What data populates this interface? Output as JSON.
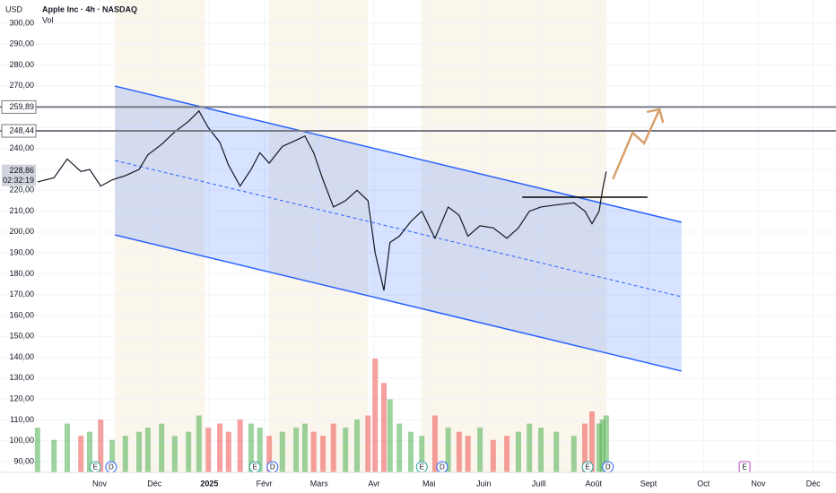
{
  "chart_data": {
    "type": "line",
    "currency": "USD",
    "title": "Apple Inc · 4h · NASDAQ",
    "xlim": [
      -1.814,
      13.415
    ],
    "ylim": [
      84.85,
      311.16
    ],
    "y2lim": [
      0,
      581
    ],
    "grid": true,
    "xticks": [
      {
        "value": 0,
        "label": "Nov"
      },
      {
        "value": 1,
        "label": "Déc"
      },
      {
        "value": 2,
        "label": "2025"
      },
      {
        "value": 3,
        "label": "Févr"
      },
      {
        "value": 4,
        "label": "Mars"
      },
      {
        "value": 5,
        "label": "Avr"
      },
      {
        "value": 6,
        "label": "Mai"
      },
      {
        "value": 7,
        "label": "Juin"
      },
      {
        "value": 8,
        "label": "Juill"
      },
      {
        "value": 9,
        "label": "Août"
      },
      {
        "value": 10,
        "label": "Sept"
      },
      {
        "value": 11,
        "label": "Oct"
      },
      {
        "value": 12,
        "label": "Nov"
      },
      {
        "value": 13,
        "label": "Déc"
      }
    ],
    "yticks": [
      {
        "value": 90,
        "label": "90,00"
      },
      {
        "value": 100,
        "label": "100,00"
      },
      {
        "value": 110,
        "label": "110,00"
      },
      {
        "value": 120,
        "label": "120,00"
      },
      {
        "value": 130,
        "label": "130,00"
      },
      {
        "value": 140,
        "label": "140,00"
      },
      {
        "value": 150,
        "label": "150,00"
      },
      {
        "value": 160,
        "label": "160,00"
      },
      {
        "value": 170,
        "label": "170,00"
      },
      {
        "value": 180,
        "label": "180,00"
      },
      {
        "value": 190,
        "label": "190,00"
      },
      {
        "value": 200,
        "label": "200,00"
      },
      {
        "value": 210,
        "label": "210,00"
      },
      {
        "value": 220,
        "label": "220,00"
      },
      {
        "value": 230,
        "label": "230,00"
      },
      {
        "value": 240,
        "label": "240,00"
      },
      {
        "value": 250,
        "label": "250,00"
      },
      {
        "value": 260,
        "label": "260,00"
      },
      {
        "value": 270,
        "label": "270,00"
      },
      {
        "value": 280,
        "label": "280,00"
      },
      {
        "value": 290,
        "label": "290,00"
      },
      {
        "value": 300,
        "label": "300,00"
      }
    ],
    "series": [
      {
        "color": "#131722",
        "x": [
          -1.13,
          -0.83,
          -0.59,
          -0.34,
          -0.18,
          0.02,
          0.23,
          0.47,
          0.72,
          0.88,
          1.13,
          1.37,
          1.62,
          1.81,
          1.98,
          2.19,
          2.35,
          2.56,
          2.76,
          2.92,
          3.09,
          3.33,
          3.58,
          3.74,
          3.9,
          4.07,
          4.26,
          4.48,
          4.69,
          4.89,
          5.02,
          5.18,
          5.29,
          5.46,
          5.67,
          5.87,
          6.11,
          6.35,
          6.55,
          6.71,
          6.93,
          7.17,
          7.42,
          7.63,
          7.83,
          8.04,
          8.32,
          8.64,
          8.84,
          8.97,
          9.1,
          9.16,
          9.23
        ],
        "values": [
          224,
          226,
          235,
          229,
          230,
          222,
          225,
          227,
          230,
          237,
          242,
          248,
          253,
          258,
          250,
          243,
          232,
          222,
          230,
          238,
          233,
          241,
          244,
          246,
          238,
          225,
          212,
          215,
          220,
          215,
          190,
          172,
          195,
          198,
          205,
          210,
          197,
          212,
          208,
          198,
          203,
          202,
          197,
          202,
          210,
          212,
          213,
          214,
          210,
          204,
          210,
          220,
          229
        ]
      },
      {
        "name": "Vol",
        "axis": "y2",
        "color": "#4caf50",
        "down_color": "#ef5350",
        "x": [
          -1.13,
          -0.83,
          -0.59,
          -0.34,
          -0.18,
          0.02,
          0.23,
          0.47,
          0.72,
          0.88,
          1.13,
          1.37,
          1.62,
          1.81,
          1.98,
          2.19,
          2.35,
          2.56,
          2.76,
          2.92,
          3.09,
          3.33,
          3.58,
          3.74,
          3.9,
          4.07,
          4.26,
          4.48,
          4.69,
          4.89,
          5.02,
          5.18,
          5.29,
          5.46,
          5.67,
          5.87,
          6.11,
          6.35,
          6.55,
          6.71,
          6.93,
          7.17,
          7.42,
          7.63,
          7.83,
          8.04,
          8.32,
          8.64,
          8.84,
          8.97,
          9.1,
          9.16,
          9.23
        ],
        "values": [
          55,
          40,
          60,
          45,
          50,
          65,
          40,
          45,
          50,
          55,
          60,
          45,
          50,
          70,
          55,
          60,
          50,
          65,
          60,
          55,
          45,
          50,
          55,
          60,
          50,
          45,
          60,
          55,
          65,
          70,
          140,
          110,
          90,
          60,
          50,
          45,
          70,
          55,
          50,
          45,
          55,
          40,
          45,
          50,
          60,
          55,
          50,
          45,
          60,
          75,
          60,
          65,
          70
        ]
      }
    ],
    "drawings": {
      "channel": {
        "color": "#2962ff",
        "x": [
          0.28,
          10.6
        ],
        "upper": [
          269.9,
          204.7
        ],
        "middle": [
          234.3,
          169.0
        ],
        "lower": [
          198.6,
          133.4
        ]
      },
      "hlines": [
        {
          "value": 259.89,
          "label": "259,89"
        },
        {
          "value": 248.44,
          "label": "248,44"
        }
      ],
      "resistance": {
        "x": [
          7.7,
          9.98
        ],
        "values": [
          216.7,
          216.7
        ]
      },
      "projection": {
        "color": "#d9a06b",
        "x": [
          9.35,
          9.71,
          9.92,
          10.2
        ],
        "values": [
          225.3,
          247.6,
          242.5,
          258.8
        ]
      },
      "last_price": {
        "value": 228.86,
        "label": "228,86",
        "countdown": "02:32:19"
      }
    },
    "events": [
      {
        "x": -0.08,
        "label": "E"
      },
      {
        "x": 0.21,
        "label": "D"
      },
      {
        "x": 2.83,
        "label": "E"
      },
      {
        "x": 3.15,
        "label": "D"
      },
      {
        "x": 5.87,
        "label": "E"
      },
      {
        "x": 6.24,
        "label": "D"
      },
      {
        "x": 8.89,
        "label": "E"
      },
      {
        "x": 9.26,
        "label": "D"
      },
      {
        "x": 11.75,
        "label": "E"
      }
    ]
  }
}
